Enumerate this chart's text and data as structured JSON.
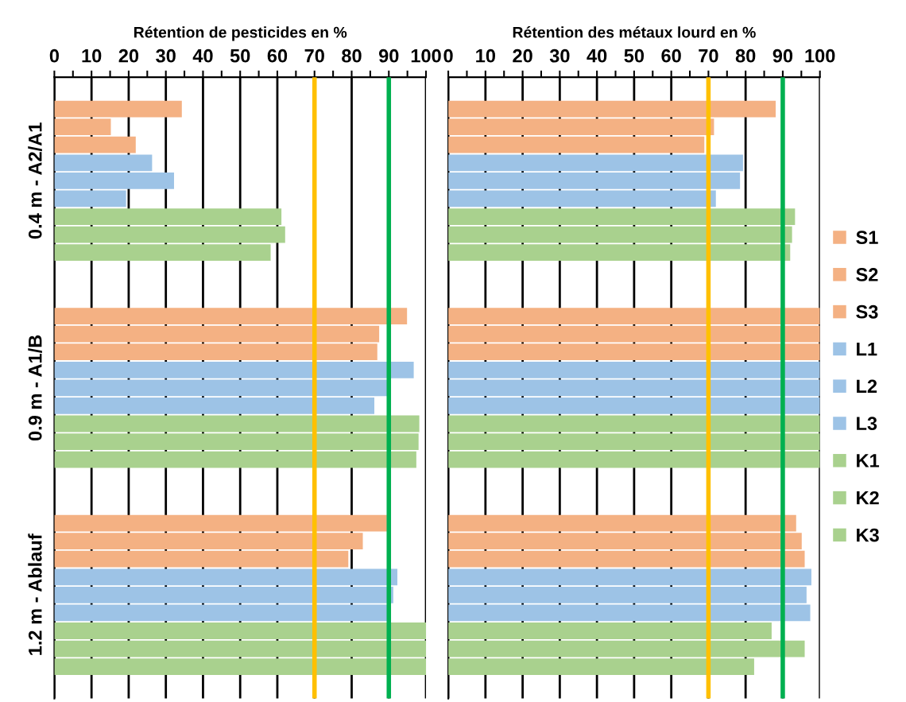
{
  "chart_data": [
    {
      "type": "bar",
      "orientation": "horizontal",
      "xlabel": "Rétention de pesticides en %",
      "categories": [
        "0.4 m - A2/A1",
        "0.9 m - A1/B",
        "1.2 m - Ablauf"
      ],
      "series": [
        {
          "color": "#f4b183",
          "values": [
            34.3,
            94.9,
            89.5
          ]
        },
        {
          "color": "#f4b183",
          "values": [
            15.2,
            87.4,
            83.0
          ]
        },
        {
          "color": "#f4b183",
          "values": [
            21.9,
            86.9,
            79.1
          ]
        },
        {
          "color": "#9dc3e6",
          "values": [
            26.3,
            96.7,
            92.3
          ]
        },
        {
          "color": "#9dc3e6",
          "values": [
            32.2,
            89.8,
            91.2
          ]
        },
        {
          "color": "#9dc3e6",
          "values": [
            19.3,
            86.1,
            89.8
          ]
        },
        {
          "color": "#a9d18e",
          "values": [
            61.1,
            98.2,
            100
          ]
        },
        {
          "color": "#a9d18e",
          "values": [
            62.1,
            98.0,
            100
          ]
        },
        {
          "color": "#a9d18e",
          "values": [
            58.2,
            97.4,
            100
          ]
        }
      ],
      "xlim": [
        0,
        100
      ],
      "xticks": [
        0,
        {
          "value": 5,
          "label": null
        },
        10,
        {
          "value": 15,
          "label": null
        },
        20,
        {
          "value": 25,
          "label": null
        },
        30,
        {
          "value": 35,
          "label": null
        },
        40,
        {
          "value": 45,
          "label": null
        },
        50,
        {
          "value": 55,
          "label": null
        },
        60,
        {
          "value": 65,
          "label": null
        },
        70,
        {
          "value": 75,
          "label": null
        },
        80,
        {
          "value": 85,
          "label": null
        },
        90,
        {
          "value": 95,
          "label": null
        },
        100
      ],
      "ref_lines": [
        {
          "axis": "x",
          "value": 70,
          "color": "#ffc000"
        },
        {
          "axis": "x",
          "value": 90,
          "color": "#00b050"
        }
      ],
      "grid": "x"
    },
    {
      "type": "bar",
      "orientation": "horizontal",
      "xlabel": "Rétention des métaux lourd en %",
      "categories": [
        null,
        null,
        null
      ],
      "series": [
        {
          "name": "S1",
          "color": "#f4b183",
          "values": [
            88.1,
            100,
            93.6
          ]
        },
        {
          "name": "S2",
          "color": "#f4b183",
          "values": [
            71.5,
            100,
            95.1
          ]
        },
        {
          "name": "S3",
          "color": "#f4b183",
          "values": [
            68.9,
            100,
            95.9
          ]
        },
        {
          "name": "L1",
          "color": "#9dc3e6",
          "values": [
            79.3,
            100,
            97.7
          ]
        },
        {
          "name": "L2",
          "color": "#9dc3e6",
          "values": [
            78.5,
            100,
            96.4
          ]
        },
        {
          "name": "L3",
          "color": "#9dc3e6",
          "values": [
            72.0,
            100,
            97.4
          ]
        },
        {
          "name": "K1",
          "color": "#a9d18e",
          "values": [
            93.3,
            100,
            87.0
          ]
        },
        {
          "name": "K2",
          "color": "#a9d18e",
          "values": [
            92.5,
            100,
            95.9
          ]
        },
        {
          "name": "K3",
          "color": "#a9d18e",
          "values": [
            92.0,
            100,
            82.3
          ]
        }
      ],
      "xlim": [
        0,
        100
      ],
      "xticks": [
        0,
        {
          "value": 5,
          "label": null
        },
        10,
        {
          "value": 15,
          "label": null
        },
        20,
        {
          "value": 25,
          "label": null
        },
        30,
        {
          "value": 35,
          "label": null
        },
        40,
        {
          "value": 45,
          "label": null
        },
        50,
        {
          "value": 55,
          "label": null
        },
        60,
        {
          "value": 65,
          "label": null
        },
        70,
        {
          "value": 75,
          "label": null
        },
        80,
        {
          "value": 85,
          "label": null
        },
        90,
        {
          "value": 95,
          "label": null
        },
        100
      ],
      "ref_lines": [
        {
          "axis": "x",
          "value": 70,
          "color": "#ffc000"
        },
        {
          "axis": "x",
          "value": 90,
          "color": "#00b050"
        }
      ],
      "grid": "x",
      "legend": "right"
    }
  ]
}
